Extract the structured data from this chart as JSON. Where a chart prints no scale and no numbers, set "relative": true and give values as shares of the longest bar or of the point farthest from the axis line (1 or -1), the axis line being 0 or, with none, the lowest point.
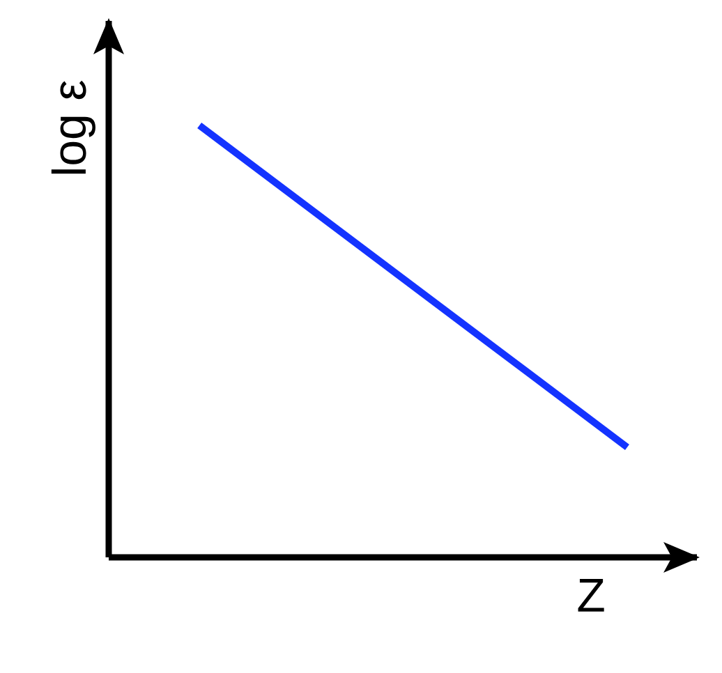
{
  "chart_data": {
    "type": "line",
    "xlabel": "Z",
    "ylabel": "log ε",
    "categories": [
      null,
      null
    ],
    "values": [
      1,
      0.255
    ],
    "color": "#1433ff",
    "relative": true
  }
}
